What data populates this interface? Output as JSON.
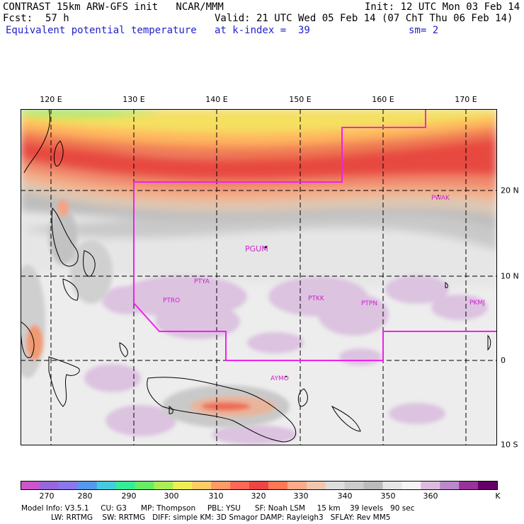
{
  "header": {
    "model_line": "CONTRAST 15km ARW-GFS init   NCAR/MMM",
    "init_line": "Init: 12 UTC Mon 03 Feb 14",
    "fcst_label": "Fcst:",
    "fcst_value": "57 h",
    "valid_line": "Valid: 21 UTC Wed 05 Feb 14 (07 ChT Thu 06 Feb 14)",
    "field_name": "Equivalent potential temperature",
    "level_label": "at k-index =  39",
    "smooth_label": "sm= 2"
  },
  "map": {
    "lon_labels": [
      "120 E",
      "130 E",
      "140 E",
      "150 E",
      "160 E",
      "170 E"
    ],
    "lat_labels": [
      "20 N",
      "10 N",
      "0",
      "10 S"
    ],
    "stations": [
      "PWAK",
      "PGUM",
      "PTYA",
      "PTRO",
      "PTKK",
      "PTPN",
      "PKMJ",
      "AYMO"
    ],
    "boundary_color": "#ee22ee"
  },
  "colorbar": {
    "labels": [
      "270",
      "280",
      "290",
      "300",
      "310",
      "320",
      "330",
      "340",
      "350",
      "360"
    ],
    "unit": "K",
    "colors": [
      "#cc55cc",
      "#9966dd",
      "#8877ee",
      "#5599ee",
      "#44ccdd",
      "#33ee99",
      "#66ee66",
      "#aaee55",
      "#eeee55",
      "#ffcc66",
      "#ff9966",
      "#ff6655",
      "#ee4444",
      "#ff7755",
      "#ffaa88",
      "#f0c8b0",
      "#dedede",
      "#cccccc",
      "#bbbbbb",
      "#e6e6e6",
      "#f4f4f4",
      "#ddbbdd",
      "#bb88cc",
      "#993399",
      "#660066"
    ]
  },
  "model_info": {
    "line1": "Model Info: V3.5.1     CU: G3      MP: Thompson     PBL: YSU      SF: Noah LSM     15 km    39 levels   90 sec",
    "line2": "LW: RRTMG    SW: RRTMG   DIFF: simple KM: 3D Smagor DAMP: Rayleigh3   SFLAY: Rev MM5"
  }
}
